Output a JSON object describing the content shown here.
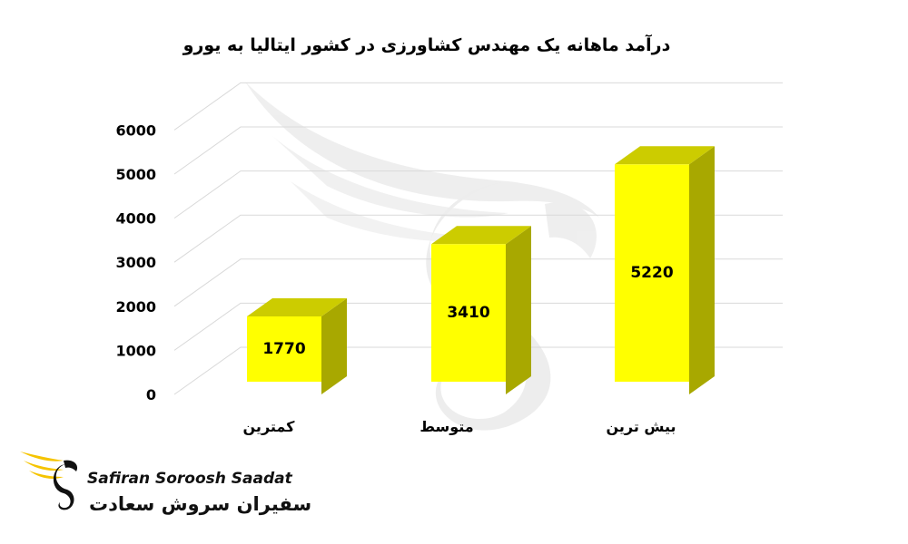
{
  "chart_data": {
    "type": "bar",
    "title": "درآمد ماهانه یک مهندس کشاورزی در کشور ایتالیا به یورو",
    "categories": [
      "کمترین",
      "متوسط",
      "بیش ترین"
    ],
    "values": [
      1770,
      3410,
      5220
    ],
    "data_labels": [
      "1770",
      "3410",
      "5220"
    ],
    "y_ticks": [
      "0",
      "1000",
      "2000",
      "3000",
      "4000",
      "5000",
      "6000"
    ],
    "ylim": [
      0,
      6000
    ],
    "grid": true,
    "style": "3d-column",
    "colors": {
      "bar_front": "#ffff00",
      "bar_top": "#cccc00",
      "bar_side": "#a8a800",
      "grid": "#d9d9d9",
      "watermark": "#e6e6e6"
    }
  },
  "logo": {
    "name_en": "Safiran Soroosh Saadat",
    "name_fa": "سفیران سروش سعادت",
    "accent": "#f5c400"
  }
}
